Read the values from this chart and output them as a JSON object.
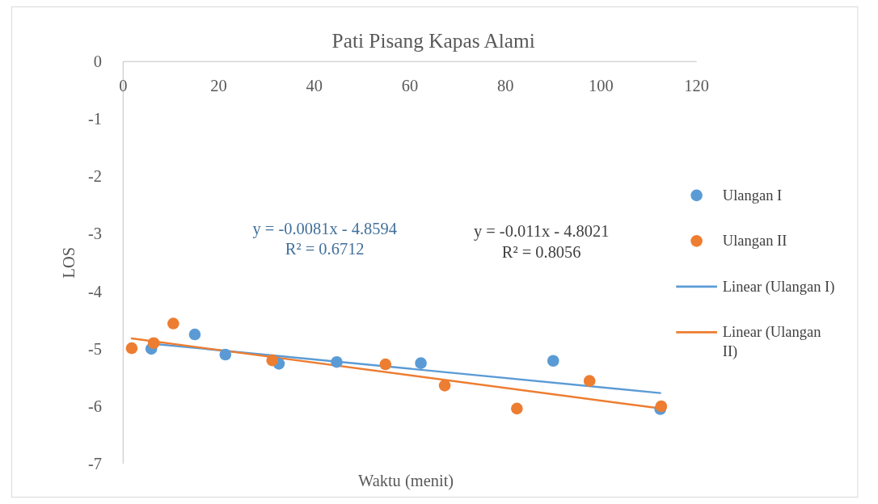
{
  "chart_data": {
    "type": "scatter",
    "title": "Pati Pisang Kapas Alami",
    "xlabel": "Waktu (menit)",
    "ylabel": "LOS",
    "xlim": [
      0,
      120
    ],
    "xticks": [
      0,
      20,
      40,
      60,
      80,
      100,
      120
    ],
    "ylim": [
      -7,
      0
    ],
    "yticks": [
      -7,
      -6,
      -5,
      -4,
      -3,
      -2,
      -1,
      0
    ],
    "grid": false,
    "legend": "right",
    "line_style": "solid",
    "series": [
      {
        "name": "Ulangan I",
        "color": "#5b9bd5",
        "marker": "circle",
        "x": [
          5.9,
          15,
          21.4,
          32.6,
          44.7,
          62.3,
          90,
          112.4
        ],
        "values": [
          -5.0,
          -4.75,
          -5.1,
          -5.26,
          -5.23,
          -5.25,
          -5.21,
          -6.05
        ]
      },
      {
        "name": "Ulangan II",
        "color": "#ed7d31",
        "marker": "circle",
        "x": [
          1.8,
          6.4,
          10.5,
          31.2,
          54.9,
          67.3,
          82.4,
          97.6,
          112.6
        ],
        "values": [
          -4.99,
          -4.9,
          -4.56,
          -5.2,
          -5.27,
          -5.64,
          -6.04,
          -5.56,
          -6.0
        ]
      },
      {
        "name": "Linear (Ulangan I)",
        "type": "line",
        "marker": "none",
        "color": "#5b9bd5",
        "x": [
          5.9,
          112.4
        ],
        "values": [
          -4.91,
          -5.77
        ]
      },
      {
        "name": "Linear (Ulangan II)",
        "type": "line",
        "marker": "none",
        "color": "#ed7d31",
        "x": [
          1.8,
          112.6
        ],
        "values": [
          -4.82,
          -6.04
        ]
      }
    ],
    "annotations": [
      "y = -0.0081x - 4.8594\nR² = 0.6712",
      "y = -0.011x - 4.8021\nR² = 0.8056"
    ]
  }
}
